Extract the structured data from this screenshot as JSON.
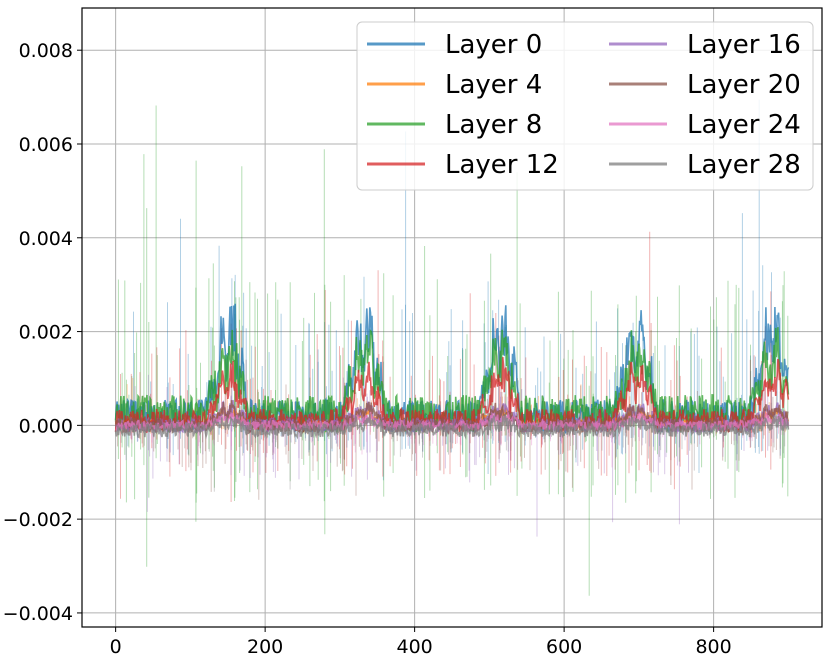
{
  "chart_data": {
    "type": "line",
    "title": "",
    "xlabel": "",
    "ylabel": "",
    "xlim": [
      -45,
      945
    ],
    "ylim": [
      -0.0043,
      0.0089
    ],
    "grid": true,
    "legend": {
      "placement": "top-right",
      "columns": 2
    },
    "x_ticks": [
      {
        "value": 0,
        "label": "0"
      },
      {
        "value": 200,
        "label": "200"
      },
      {
        "value": 400,
        "label": "400"
      },
      {
        "value": 600,
        "label": "600"
      },
      {
        "value": 800,
        "label": "800"
      }
    ],
    "y_ticks": [
      {
        "value": -0.004,
        "label": "−0.004"
      },
      {
        "value": -0.002,
        "label": "−0.002"
      },
      {
        "value": 0.0,
        "label": "0.000"
      },
      {
        "value": 0.002,
        "label": "0.002"
      },
      {
        "value": 0.004,
        "label": "0.004"
      },
      {
        "value": 0.006,
        "label": "0.006"
      },
      {
        "value": 0.008,
        "label": "0.008"
      }
    ],
    "x_range": [
      0,
      900
    ],
    "repeat_period": 182,
    "series": [
      {
        "name": "Layer 0",
        "color": "#1f77b4",
        "base": 0.0002,
        "noise": 0.00035,
        "burst_peak": 0.0033,
        "spike_max": 0.0071,
        "neg_spike_max": -0.0015
      },
      {
        "name": "Layer 4",
        "color": "#ff7f0e",
        "base": 5e-05,
        "noise": 8e-05,
        "burst_peak": 0.0004,
        "spike_max": 0.0012,
        "neg_spike_max": -0.0005
      },
      {
        "name": "Layer 8",
        "color": "#2ca02c",
        "base": 0.00025,
        "noise": 0.0004,
        "burst_peak": 0.0024,
        "spike_max": 0.0083,
        "neg_spike_max": -0.0037
      },
      {
        "name": "Layer 12",
        "color": "#d62728",
        "base": 0.0001,
        "noise": 0.00025,
        "burst_peak": 0.0017,
        "spike_max": 0.0046,
        "neg_spike_max": -0.0025
      },
      {
        "name": "Layer 16",
        "color": "#9467bd",
        "base": 0.0,
        "noise": 0.00015,
        "burst_peak": 0.0006,
        "spike_max": 0.0015,
        "neg_spike_max": -0.0026
      },
      {
        "name": "Layer 20",
        "color": "#8c564b",
        "base": 0.0,
        "noise": 0.00015,
        "burst_peak": 0.0006,
        "spike_max": 0.0015,
        "neg_spike_max": -0.0022
      },
      {
        "name": "Layer 24",
        "color": "#e377c2",
        "base": 0.0,
        "noise": 0.0001,
        "burst_peak": 0.0003,
        "spike_max": 0.0008,
        "neg_spike_max": -0.001
      },
      {
        "name": "Layer 28",
        "color": "#7f7f7f",
        "base": -0.0001,
        "noise": 0.00015,
        "burst_peak": 0.0003,
        "spike_max": 0.0008,
        "neg_spike_max": -0.0016
      }
    ]
  }
}
